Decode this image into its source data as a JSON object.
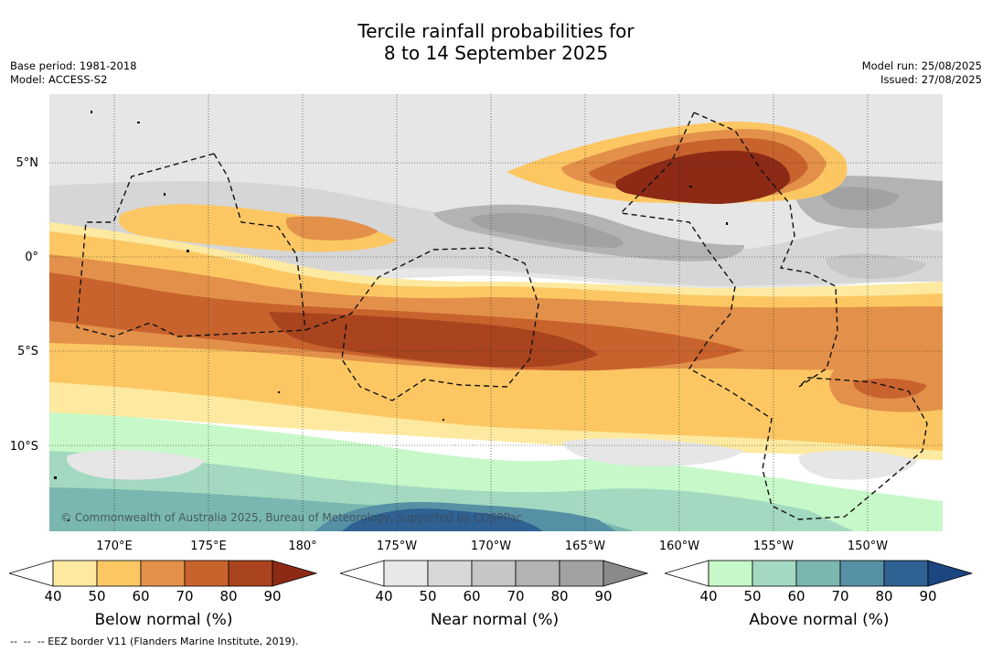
{
  "title": {
    "line1": "Tercile rainfall probabilities for",
    "line2": "8 to 14 September 2025"
  },
  "meta_left": {
    "base_period": "Base period: 1981-2018",
    "model": "Model: ACCESS-S2"
  },
  "meta_right": {
    "model_run": "Model run: 25/08/2025",
    "issued": "Issued: 27/08/2025"
  },
  "map": {
    "lat_labels": [
      "5°N",
      "0°",
      "5°S",
      "10°S"
    ],
    "lon_labels": [
      "170°E",
      "175°E",
      "180°",
      "175°W",
      "170°W",
      "165°W",
      "160°W",
      "155°W",
      "150°W"
    ],
    "copyright": "© Commonwealth of Australia 2025, Bureau of Meteorology, supported by COSPPac",
    "land_color": "#ffffff"
  },
  "colorbars": [
    {
      "title": "Below normal (%)",
      "ticks": [
        "40",
        "50",
        "60",
        "70",
        "80",
        "90"
      ],
      "colors": [
        "#ffffff",
        "#fdeaa0",
        "#fcc763",
        "#e3914a",
        "#c9632e",
        "#a9441f",
        "#8c2a16"
      ]
    },
    {
      "title": "Near normal (%)",
      "ticks": [
        "40",
        "50",
        "60",
        "70",
        "80",
        "90"
      ],
      "colors": [
        "#ffffff",
        "#e8e8e8",
        "#d8d8d8",
        "#c6c6c6",
        "#b3b3b3",
        "#a2a2a2",
        "#8a8a8a"
      ]
    },
    {
      "title": "Above normal (%)",
      "ticks": [
        "40",
        "50",
        "60",
        "70",
        "80",
        "90"
      ],
      "colors": [
        "#ffffff",
        "#c7f8c9",
        "#a3d9c0",
        "#7ab7b0",
        "#5690a4",
        "#2f6193",
        "#1c4682"
      ]
    }
  ],
  "footer": "--  --  -- EEZ border V11 (Flanders Marine Institute, 2019)."
}
